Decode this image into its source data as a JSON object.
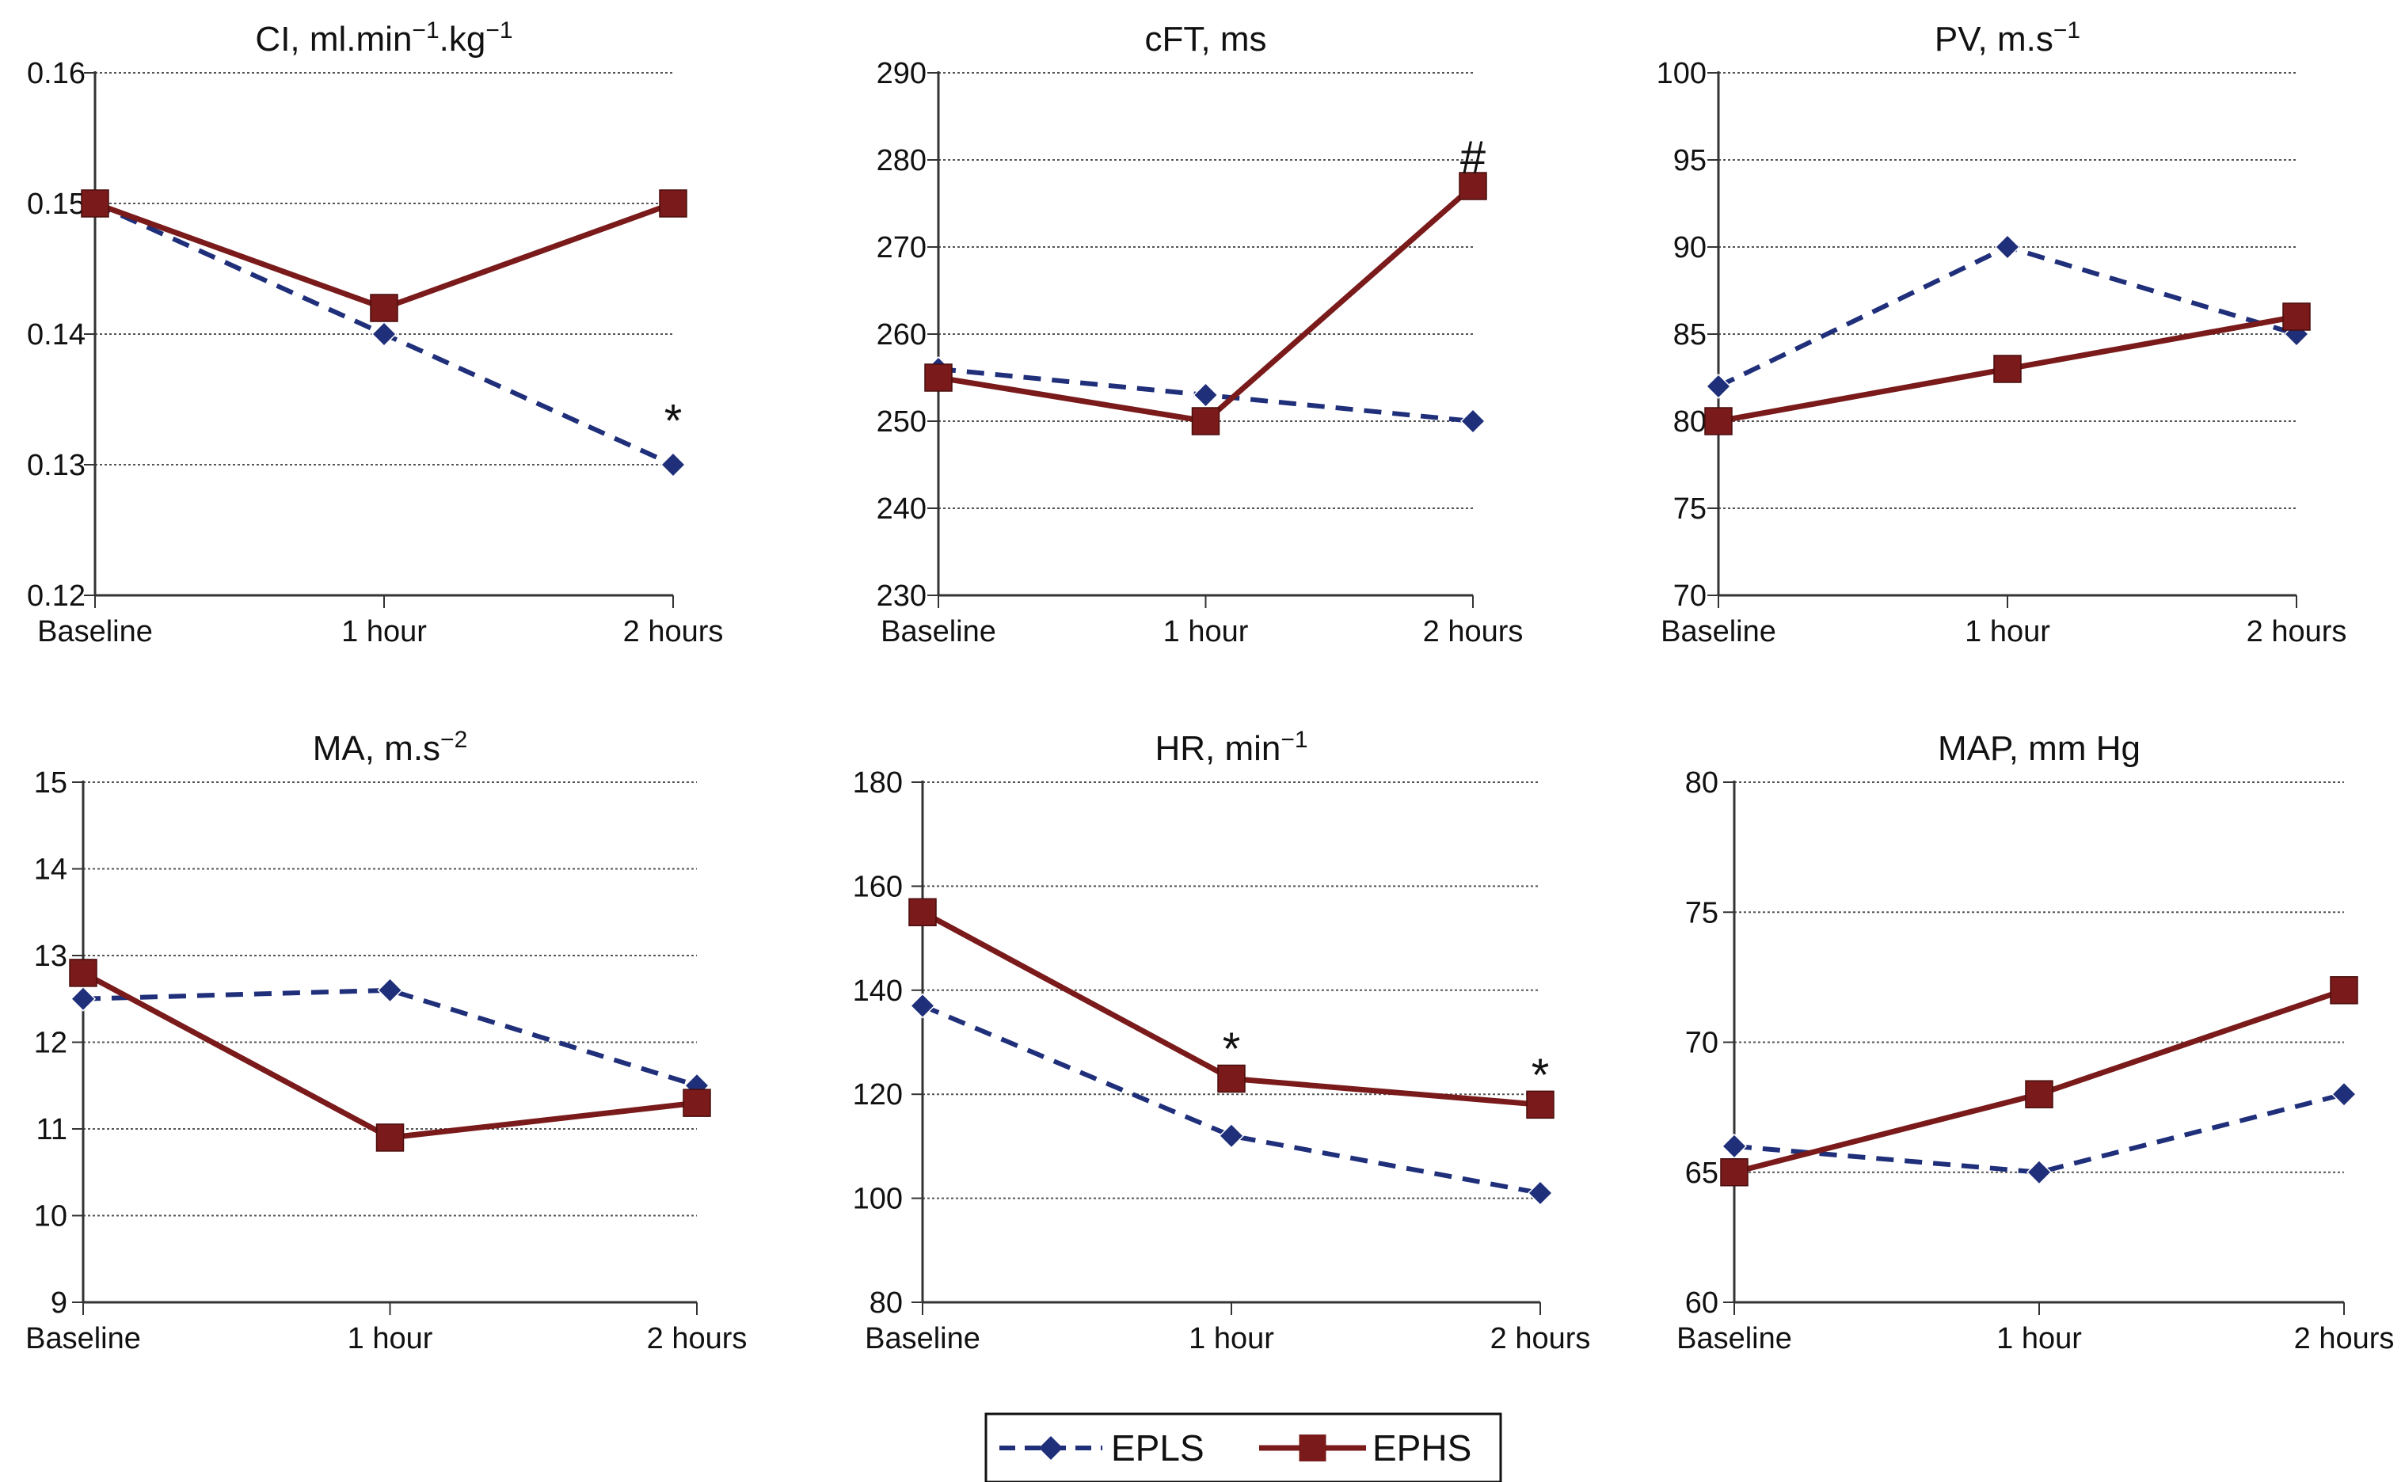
{
  "series_styles": {
    "EPLS": {
      "color": "#1f2f7a",
      "dash": "dashed",
      "marker": "diamond"
    },
    "EPHS": {
      "color": "#7a1a1a",
      "dash": "solid",
      "marker": "square"
    }
  },
  "legend": {
    "items": [
      {
        "label": "EPLS",
        "series": "EPLS"
      },
      {
        "label": "EPHS",
        "series": "EPHS"
      }
    ]
  },
  "chart_data": [
    {
      "type": "line",
      "title_parts": {
        "base": "CI, ml.min",
        "sup1": "−1",
        "mid": ".kg",
        "sup2": "−1"
      },
      "categories": [
        "Baseline",
        "1 hour",
        "2 hours"
      ],
      "ylim": [
        0.12,
        0.16
      ],
      "yticks": [
        "0.12",
        "0.13",
        "0.14",
        "0.15",
        "0.16"
      ],
      "grid": true,
      "series": [
        {
          "name": "EPLS",
          "values": [
            0.15,
            0.14,
            0.13
          ]
        },
        {
          "name": "EPHS",
          "values": [
            0.15,
            0.142,
            0.15
          ]
        }
      ],
      "annotations": [
        {
          "text": "*",
          "category": "2 hours",
          "y": 0.1335
        }
      ]
    },
    {
      "type": "line",
      "title_parts": {
        "base": "cFT, ms"
      },
      "categories": [
        "Baseline",
        "1 hour",
        "2 hours"
      ],
      "ylim": [
        230,
        290
      ],
      "yticks": [
        "230",
        "240",
        "250",
        "260",
        "270",
        "280",
        "290"
      ],
      "grid": true,
      "series": [
        {
          "name": "EPLS",
          "values": [
            256,
            253,
            250
          ]
        },
        {
          "name": "EPHS",
          "values": [
            255,
            250,
            277
          ]
        }
      ],
      "annotations": [
        {
          "text": "#",
          "category": "2 hours",
          "y": 280.5
        }
      ]
    },
    {
      "type": "line",
      "title_parts": {
        "base": "PV, m.s",
        "sup1": "−1"
      },
      "categories": [
        "Baseline",
        "1 hour",
        "2 hours"
      ],
      "ylim": [
        70,
        100
      ],
      "yticks": [
        "70",
        "75",
        "80",
        "85",
        "90",
        "95",
        "100"
      ],
      "grid": true,
      "series": [
        {
          "name": "EPLS",
          "values": [
            82,
            90,
            85
          ]
        },
        {
          "name": "EPHS",
          "values": [
            80,
            83,
            86
          ]
        }
      ],
      "annotations": []
    },
    {
      "type": "line",
      "title_parts": {
        "base": "MA, m.s",
        "sup1": "−2"
      },
      "categories": [
        "Baseline",
        "1 hour",
        "2 hours"
      ],
      "ylim": [
        9,
        15
      ],
      "yticks": [
        "9",
        "10",
        "11",
        "12",
        "13",
        "14",
        "15"
      ],
      "grid": true,
      "series": [
        {
          "name": "EPLS",
          "values": [
            12.5,
            12.6,
            11.5
          ]
        },
        {
          "name": "EPHS",
          "values": [
            12.8,
            10.9,
            11.3
          ]
        }
      ],
      "annotations": []
    },
    {
      "type": "line",
      "title_parts": {
        "base": "HR, min",
        "sup1": "−1"
      },
      "categories": [
        "Baseline",
        "1 hour",
        "2 hours"
      ],
      "ylim": [
        80,
        180
      ],
      "yticks": [
        "80",
        "100",
        "120",
        "140",
        "160",
        "180"
      ],
      "grid": true,
      "series": [
        {
          "name": "EPLS",
          "values": [
            137,
            112,
            101
          ]
        },
        {
          "name": "EPHS",
          "values": [
            155,
            123,
            118
          ]
        }
      ],
      "annotations": [
        {
          "text": "*",
          "category": "1 hour",
          "y": 129
        },
        {
          "text": "*",
          "category": "2 hours",
          "y": 124
        }
      ]
    },
    {
      "type": "line",
      "title_parts": {
        "base": "MAP, mm Hg"
      },
      "categories": [
        "Baseline",
        "1 hour",
        "2 hours"
      ],
      "ylim": [
        60,
        80
      ],
      "yticks": [
        "60",
        "65",
        "70",
        "75",
        "80"
      ],
      "grid": true,
      "series": [
        {
          "name": "EPLS",
          "values": [
            66,
            65,
            68
          ]
        },
        {
          "name": "EPHS",
          "values": [
            65,
            68,
            72
          ]
        }
      ],
      "annotations": []
    }
  ]
}
